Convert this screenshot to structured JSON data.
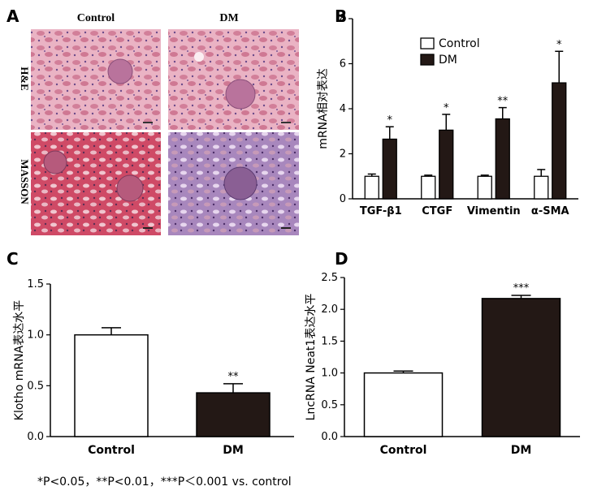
{
  "panels": {
    "a": {
      "letter": "A",
      "col_labels": [
        "Control",
        "DM"
      ],
      "row_labels": [
        "H&E",
        "MASSON"
      ]
    },
    "b": {
      "letter": "B"
    },
    "c": {
      "letter": "C"
    },
    "d": {
      "letter": "D"
    }
  },
  "colors": {
    "control": "#ffffff",
    "dm": "#231815",
    "he_tissue": "#d88aa0",
    "masson_ctrl": "#c8425d",
    "masson_dm": "#8f6aa8"
  },
  "footnote": "*P<0.05，**P<0.01，***P＜0.001 vs. control",
  "chart_data": [
    {
      "type": "bar",
      "panel": "B",
      "categories": [
        "TGF-β1",
        "CTGF",
        "Vimentin",
        "α-SMA"
      ],
      "series": [
        {
          "name": "Control",
          "values": [
            1.0,
            1.0,
            1.0,
            1.0
          ],
          "errors": [
            0.1,
            0.05,
            0.05,
            0.3
          ],
          "sig": [
            "",
            "",
            "",
            ""
          ]
        },
        {
          "name": "DM",
          "values": [
            2.65,
            3.05,
            3.55,
            5.15
          ],
          "errors": [
            0.55,
            0.7,
            0.5,
            1.4
          ],
          "sig": [
            "*",
            "*",
            "**",
            "*"
          ]
        }
      ],
      "ylabel": "mRNA相对表达",
      "ylim": [
        0,
        8
      ],
      "yticks": [
        "0",
        "2",
        "4",
        "6",
        "8"
      ],
      "legend": "top-left"
    },
    {
      "type": "bar",
      "panel": "C",
      "categories": [
        "Control",
        "DM"
      ],
      "values": [
        1.0,
        0.43
      ],
      "errors": [
        0.07,
        0.09
      ],
      "sig": [
        "",
        "**"
      ],
      "ylabel": "Klotho mRNA表达水平",
      "ylim": [
        0,
        1.5
      ],
      "yticks": [
        "0.0",
        "0.5",
        "1.0",
        "1.5"
      ]
    },
    {
      "type": "bar",
      "panel": "D",
      "categories": [
        "Control",
        "DM"
      ],
      "values": [
        1.0,
        2.17
      ],
      "errors": [
        0.03,
        0.05
      ],
      "sig": [
        "",
        "***"
      ],
      "ylabel": "LncRNA Neat1表达水平",
      "ylim": [
        0,
        2.5
      ],
      "yticks": [
        "0.0",
        "0.5",
        "1.0",
        "1.5",
        "2.0",
        "2.5"
      ]
    }
  ]
}
